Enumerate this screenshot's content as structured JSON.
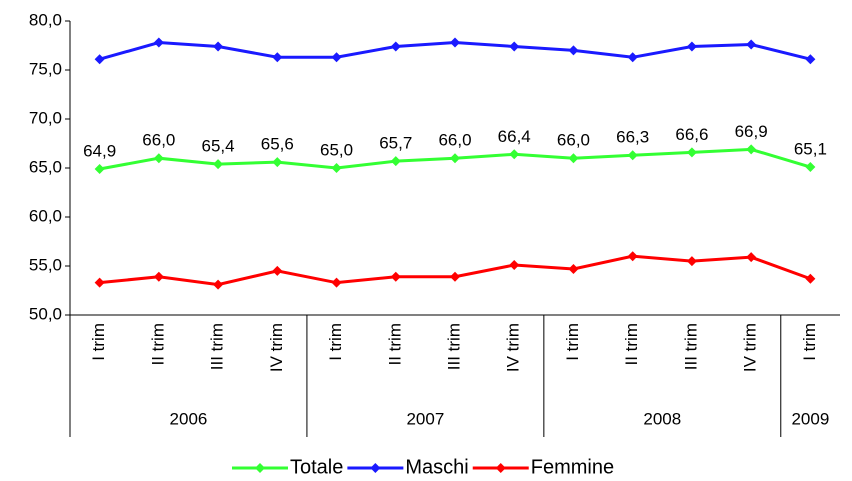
{
  "chart_data": {
    "type": "line",
    "categories": [
      "I trim",
      "II trim",
      "III trim",
      "IV trim",
      "I trim",
      "II trim",
      "III trim",
      "IV trim",
      "I trim",
      "II trim",
      "III trim",
      "IV trim",
      "I trim"
    ],
    "groups": [
      {
        "label": "2006",
        "span": 4
      },
      {
        "label": "2007",
        "span": 4
      },
      {
        "label": "2008",
        "span": 4
      },
      {
        "label": "2009",
        "span": 1
      }
    ],
    "series": [
      {
        "name": "Totale",
        "color": "#33ff33",
        "values": [
          64.9,
          66.0,
          65.4,
          65.6,
          65.0,
          65.7,
          66.0,
          66.4,
          66.0,
          66.3,
          66.6,
          66.9,
          65.1
        ],
        "value_labels": [
          "64,9",
          "66,0",
          "65,4",
          "65,6",
          "65,0",
          "65,7",
          "66,0",
          "66,4",
          "66,0",
          "66,3",
          "66,6",
          "66,9",
          "65,1"
        ]
      },
      {
        "name": "Maschi",
        "color": "#1a1aff",
        "values": [
          76.1,
          77.8,
          77.4,
          76.3,
          76.3,
          77.4,
          77.8,
          77.4,
          77.0,
          76.3,
          77.4,
          77.6,
          76.1
        ]
      },
      {
        "name": "Femmine",
        "color": "#ff0000",
        "values": [
          53.3,
          53.9,
          53.1,
          54.5,
          53.3,
          53.9,
          53.9,
          55.1,
          54.7,
          56.0,
          55.5,
          55.9,
          53.7
        ]
      }
    ],
    "ylim": [
      50,
      80
    ],
    "yticks": [
      {
        "value": 50,
        "label": "50,0"
      },
      {
        "value": 55,
        "label": "55,0"
      },
      {
        "value": 60,
        "label": "60,0"
      },
      {
        "value": 65,
        "label": "65,0"
      },
      {
        "value": 70,
        "label": "70,0"
      },
      {
        "value": 75,
        "label": "75,0"
      },
      {
        "value": 80,
        "label": "80,0"
      }
    ],
    "grid": false
  }
}
